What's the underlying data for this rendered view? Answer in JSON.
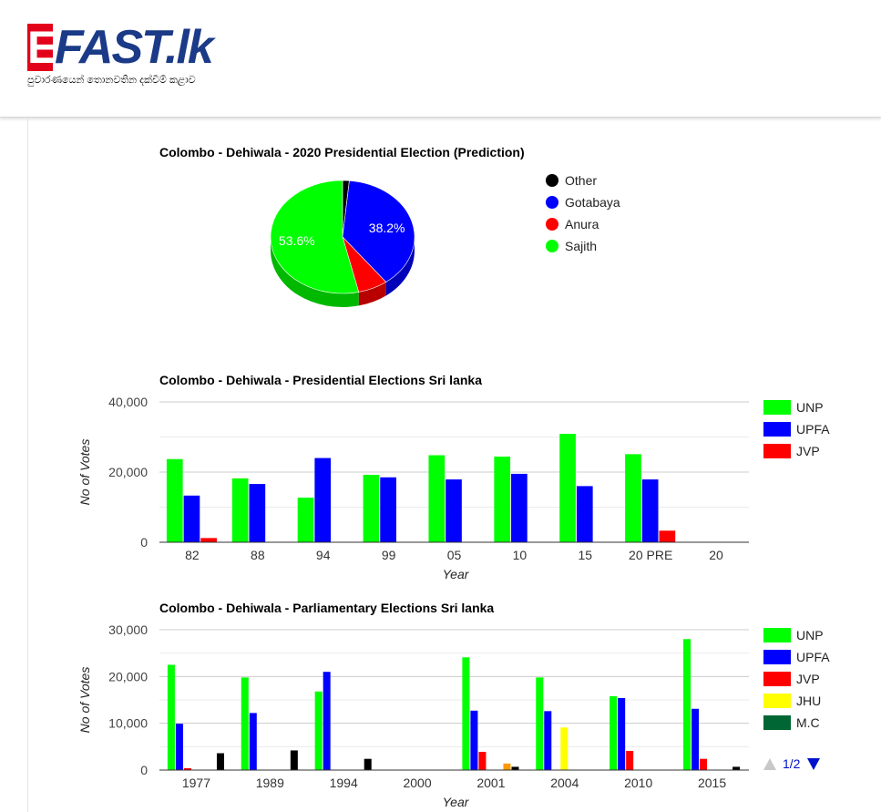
{
  "site": {
    "logo_letter": "E",
    "logo_text": "FAST.lk",
    "tagline": "පුවාරණයෙන් තොනවතින දක්වීම් කළාව"
  },
  "charts": {
    "pie": {
      "title": "Colombo - Dehiwala - 2020 Presidential Election (Prediction)"
    },
    "pres": {
      "title": "Colombo - Dehiwala - Presidential Elections Sri lanka",
      "xlabel": "Year",
      "ylabel": "No of Votes"
    },
    "parl": {
      "title": "Colombo - Dehiwala - Parliamentary Elections Sri lanka",
      "xlabel": "Year",
      "ylabel": "No of Votes",
      "pager": "1/2"
    }
  },
  "chart_data": [
    {
      "type": "pie",
      "title": "Colombo - Dehiwala - 2020 Presidential Election (Prediction)",
      "legend_position": "right",
      "slices": [
        {
          "name": "Other",
          "value": 1.5,
          "color": "#000000"
        },
        {
          "name": "Gotabaya",
          "value": 38.2,
          "color": "#0000ff",
          "label": "38.2%"
        },
        {
          "name": "Anura",
          "value": 6.7,
          "color": "#ff0000"
        },
        {
          "name": "Sajith",
          "value": 53.6,
          "color": "#00ff00",
          "label": "53.6%"
        }
      ]
    },
    {
      "type": "bar",
      "title": "Colombo - Dehiwala - Presidential Elections Sri lanka",
      "xlabel": "Year",
      "ylabel": "No of Votes",
      "ylim": [
        0,
        40000
      ],
      "yticks": [
        "0",
        "20,000",
        "40,000"
      ],
      "ytick_values": [
        0,
        20000,
        40000
      ],
      "grid": true,
      "legend_position": "right",
      "categories": [
        "82",
        "88",
        "94",
        "99",
        "05",
        "10",
        "15",
        "20 PRE",
        "20"
      ],
      "series": [
        {
          "name": "UNP",
          "color": "#00ff00",
          "values": [
            23700,
            18200,
            12700,
            19200,
            24800,
            24400,
            30900,
            25100,
            0
          ]
        },
        {
          "name": "UPFA",
          "color": "#0000ff",
          "values": [
            13300,
            16600,
            24000,
            18500,
            17900,
            19500,
            16000,
            17900,
            0
          ]
        },
        {
          "name": "JVP",
          "color": "#ff0000",
          "values": [
            1200,
            0,
            0,
            0,
            0,
            0,
            0,
            3300,
            0
          ]
        }
      ]
    },
    {
      "type": "bar",
      "title": "Colombo - Dehiwala - Parliamentary Elections Sri lanka",
      "xlabel": "Year",
      "ylabel": "No of Votes",
      "ylim": [
        0,
        30000
      ],
      "yticks": [
        "0",
        "10,000",
        "20,000",
        "30,000"
      ],
      "ytick_values": [
        0,
        10000,
        20000,
        30000
      ],
      "grid": true,
      "legend_position": "right",
      "categories": [
        "1977",
        "1989",
        "1994",
        "2000",
        "2001",
        "2004",
        "2010",
        "2015"
      ],
      "series": [
        {
          "name": "UNP",
          "color": "#00ff00",
          "values": [
            22500,
            19800,
            16800,
            0,
            24100,
            19800,
            15800,
            28000
          ]
        },
        {
          "name": "UPFA",
          "color": "#0000ff",
          "values": [
            9900,
            12200,
            21000,
            0,
            12700,
            12600,
            15400,
            13100
          ]
        },
        {
          "name": "JVP",
          "color": "#ff0000",
          "values": [
            400,
            0,
            0,
            0,
            3900,
            0,
            4100,
            2400
          ]
        },
        {
          "name": "JHU",
          "color": "#ffff00",
          "values": [
            0,
            0,
            0,
            0,
            0,
            9100,
            0,
            0
          ]
        },
        {
          "name": "M.C",
          "color": "#006633",
          "values": [
            0,
            0,
            0,
            0,
            0,
            0,
            0,
            0
          ]
        },
        {
          "name": "",
          "color": "#ff9900",
          "values": [
            0,
            0,
            0,
            0,
            1400,
            0,
            0,
            0
          ]
        },
        {
          "name": "",
          "color": "#000000",
          "values": [
            3600,
            4200,
            2400,
            0,
            700,
            0,
            0,
            700
          ]
        }
      ]
    }
  ]
}
